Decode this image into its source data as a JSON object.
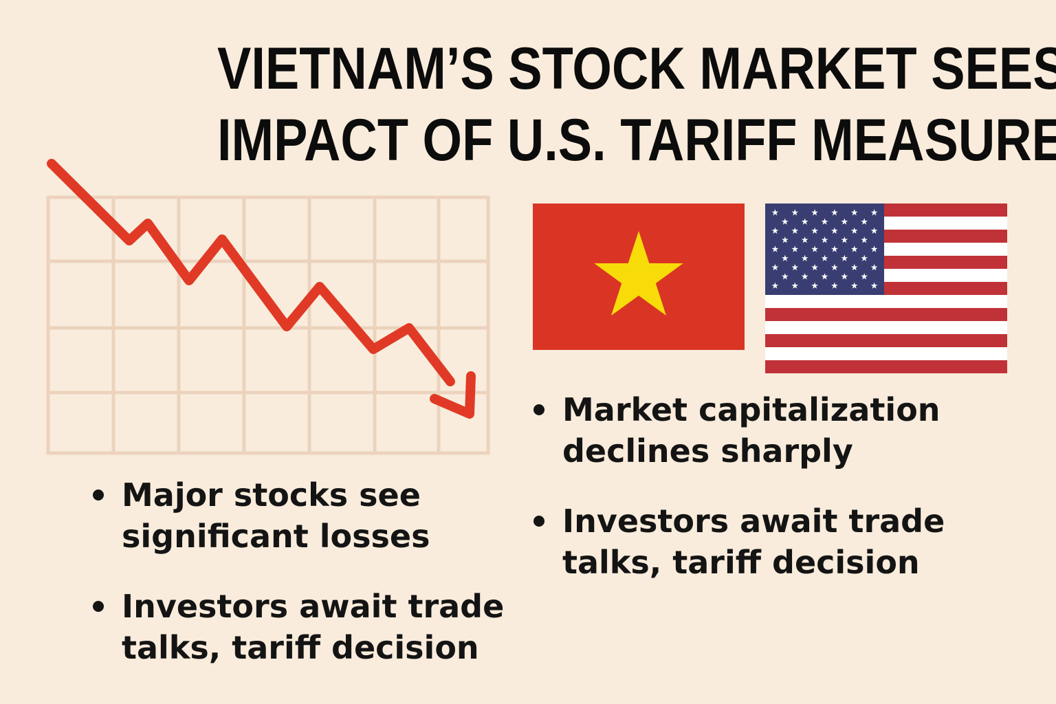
{
  "headline": {
    "line1": "VIETNAM’S STOCK MARKET SEES",
    "line2": "IMPACT OF U.S. TARIFF MEASURE"
  },
  "chart": {
    "icon": "downtrend-chart-icon",
    "arrow_color": "#e03a26",
    "grid_color": "#ecd3bd"
  },
  "flags": {
    "vietnam": {
      "icon": "vietnam-flag-icon",
      "red": "#da3524",
      "star": "#f7dc0a"
    },
    "usa": {
      "icon": "us-flag-icon",
      "red": "#c03237",
      "blue": "#3a3d72",
      "white": "#ffffff"
    }
  },
  "left_bullets": [
    {
      "line1": "Major stocks see",
      "line2": "significant losses"
    },
    {
      "line1": "Investors await trade",
      "line2": "talks, tariff decision"
    }
  ],
  "right_bullets": [
    {
      "line1": "Market capitalization",
      "line2": "declines sharply"
    },
    {
      "line1": "Investors await trade",
      "line2": "talks, tariff decision"
    }
  ]
}
